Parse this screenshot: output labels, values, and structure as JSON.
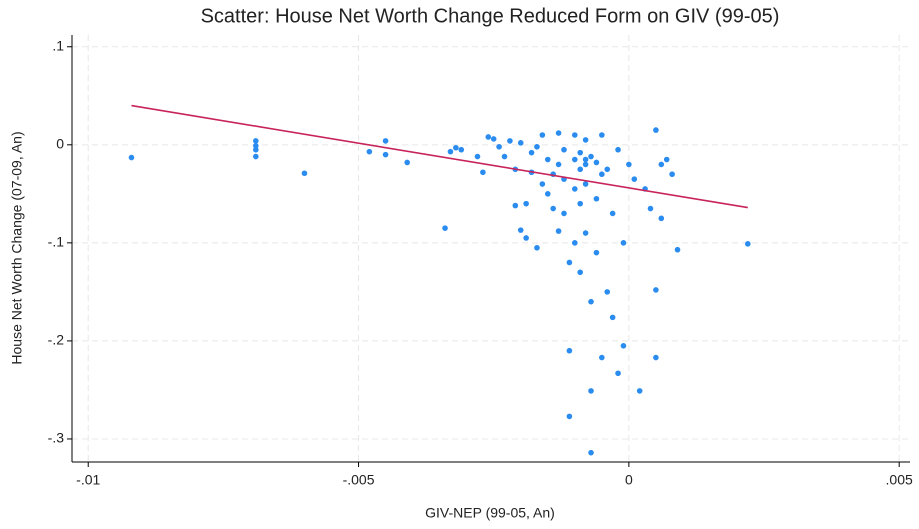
{
  "chart_data": {
    "type": "scatter",
    "title": "Scatter: House Net Worth Change Reduced Form on GIV (99-05)",
    "x_label": "GIV-NEP (99-05, An)",
    "y_label": "House Net Worth Change (07-09, An)",
    "xlim": [
      -0.0103,
      0.0052
    ],
    "ylim": [
      -0.3235,
      0.112
    ],
    "xticks": [
      {
        "value": -0.01,
        "label": "-.01"
      },
      {
        "value": -0.005,
        "label": "-.005"
      },
      0,
      {
        "value": 0.005,
        "label": ".005"
      }
    ],
    "yticks": [
      {
        "value": 0.1,
        "label": ".1"
      },
      0,
      {
        "value": -0.1,
        "label": "-.1"
      },
      {
        "value": -0.2,
        "label": "-.2"
      },
      {
        "value": -0.3,
        "label": "-.3"
      }
    ],
    "grid": true,
    "series": [
      {
        "color": "#2b8cf0",
        "x": [
          -0.0092,
          -0.0069,
          -0.0069,
          -0.0069,
          -0.0069,
          -0.006,
          -0.0048,
          -0.0045,
          -0.0045,
          -0.0041,
          -0.0034,
          -0.0033,
          -0.0032,
          -0.0031,
          -0.0028,
          -0.0027,
          -0.0026,
          -0.0025,
          -0.0024,
          -0.0023,
          -0.0022,
          -0.0021,
          -0.0021,
          -0.002,
          -0.002,
          -0.0019,
          -0.0019,
          -0.0018,
          -0.0018,
          -0.0017,
          -0.0017,
          -0.0016,
          -0.0016,
          -0.0015,
          -0.0015,
          -0.0014,
          -0.0014,
          -0.0013,
          -0.0013,
          -0.0013,
          -0.0012,
          -0.0012,
          -0.0012,
          -0.0011,
          -0.0011,
          -0.0011,
          -0.001,
          -0.001,
          -0.001,
          -0.001,
          -0.0009,
          -0.0009,
          -0.0009,
          -0.0009,
          -0.0008,
          -0.0008,
          -0.0008,
          -0.0008,
          -0.0008,
          -0.0007,
          -0.0007,
          -0.0007,
          -0.0007,
          -0.0006,
          -0.0006,
          -0.0006,
          -0.0005,
          -0.0005,
          -0.0005,
          -0.0004,
          -0.0004,
          -0.0003,
          -0.0003,
          -0.0002,
          -0.0002,
          -0.0001,
          -0.0001,
          0,
          0.0001,
          0.0002,
          0.0003,
          0.0004,
          0.0005,
          0.0005,
          0.0005,
          0.0006,
          0.0006,
          0.0007,
          0.0008,
          0.0009,
          0.0022
        ],
        "values": [
          -0.013,
          -0.012,
          -0.001,
          0.004,
          -0.005,
          -0.029,
          -0.007,
          0.004,
          -0.01,
          -0.018,
          -0.085,
          -0.007,
          -0.003,
          -0.005,
          -0.012,
          -0.028,
          0.008,
          0.006,
          -0.002,
          -0.012,
          0.004,
          -0.025,
          -0.062,
          -0.087,
          0.002,
          -0.06,
          -0.095,
          -0.008,
          -0.028,
          -0.002,
          -0.105,
          -0.04,
          0.01,
          -0.015,
          -0.05,
          -0.065,
          -0.03,
          0.012,
          -0.02,
          -0.088,
          -0.035,
          -0.07,
          -0.005,
          -0.12,
          -0.21,
          -0.277,
          -0.015,
          -0.045,
          -0.1,
          0.01,
          -0.025,
          -0.06,
          -0.13,
          -0.008,
          -0.015,
          -0.02,
          -0.04,
          -0.09,
          0.005,
          -0.012,
          -0.251,
          -0.314,
          -0.16,
          -0.018,
          -0.055,
          -0.11,
          -0.217,
          -0.03,
          0.01,
          -0.15,
          -0.025,
          -0.176,
          -0.07,
          -0.233,
          -0.005,
          -0.205,
          -0.1,
          -0.02,
          -0.035,
          -0.251,
          -0.045,
          -0.065,
          -0.217,
          -0.148,
          0.015,
          -0.02,
          -0.075,
          -0.015,
          -0.03,
          -0.107,
          -0.101
        ]
      }
    ],
    "fit": {
      "color": "#c8245a",
      "x": [
        -0.0092,
        0.0022
      ],
      "values": [
        0.04,
        -0.064
      ]
    }
  }
}
